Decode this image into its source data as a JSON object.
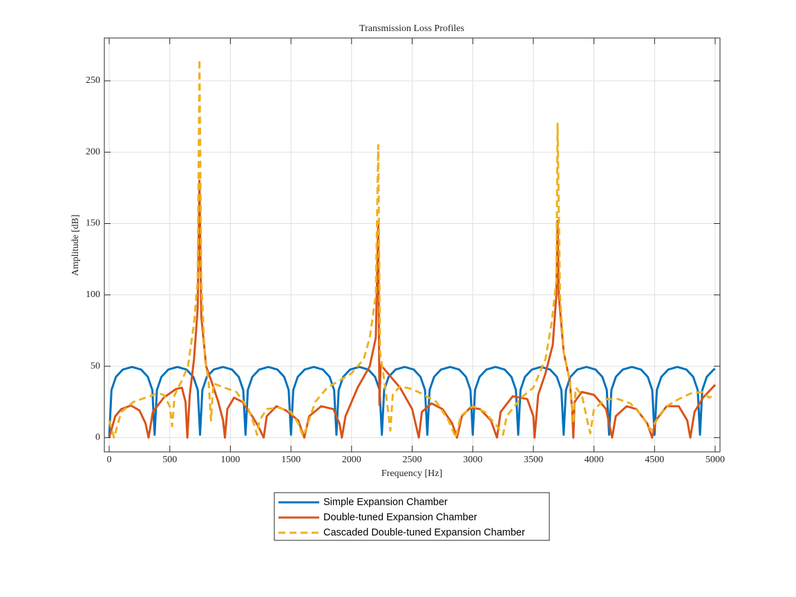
{
  "chart_data": {
    "type": "line",
    "title": "Transmission Loss Profiles",
    "xlabel": "Frequency [Hz]",
    "ylabel": "Amplitude [dB]",
    "xlim": [
      -40,
      5040
    ],
    "ylim": [
      -10,
      280
    ],
    "xticks": [
      0,
      500,
      1000,
      1500,
      2000,
      2500,
      3000,
      3500,
      4000,
      4500,
      5000
    ],
    "yticks": [
      0,
      50,
      100,
      150,
      200,
      250
    ],
    "grid": true,
    "legend": "bottom outside",
    "series": [
      {
        "name": "Simple Expansion Chamber",
        "color": "#0072BD",
        "line_style": "solid",
        "x": [
          0,
          19,
          56,
          113,
          188,
          263,
          319,
          356,
          375,
          394,
          431,
          488,
          563,
          638,
          694,
          731,
          750,
          769,
          806,
          863,
          938,
          1013,
          1069,
          1106,
          1125,
          1144,
          1181,
          1238,
          1313,
          1388,
          1444,
          1481,
          1500,
          1519,
          1556,
          1613,
          1688,
          1763,
          1819,
          1856,
          1875,
          1894,
          1931,
          1988,
          2063,
          2138,
          2194,
          2231,
          2250,
          2269,
          2306,
          2363,
          2438,
          2513,
          2569,
          2606,
          2625,
          2644,
          2681,
          2738,
          2813,
          2888,
          2944,
          2981,
          3000,
          3019,
          3056,
          3113,
          3188,
          3263,
          3319,
          3356,
          3375,
          3394,
          3431,
          3488,
          3563,
          3638,
          3694,
          3731,
          3750,
          3769,
          3806,
          3863,
          3938,
          4013,
          4069,
          4106,
          4125,
          4144,
          4181,
          4238,
          4313,
          4388,
          4444,
          4481,
          4500,
          4519,
          4556,
          4613,
          4688,
          4763,
          4819,
          4856,
          4875,
          4894,
          4931,
          4988,
          5000
        ],
        "values": [
          0,
          33.4,
          42.6,
          47.7,
          49.5,
          47.7,
          42.6,
          33.4,
          2,
          33.4,
          42.6,
          47.7,
          49.5,
          47.7,
          42.6,
          33.4,
          2,
          33.4,
          42.6,
          47.7,
          49.5,
          47.7,
          42.6,
          33.4,
          2,
          33.4,
          42.6,
          47.7,
          49.5,
          47.7,
          42.6,
          33.4,
          2,
          33.4,
          42.6,
          47.7,
          49.5,
          47.7,
          42.6,
          33.4,
          2,
          33.4,
          42.6,
          47.7,
          49.5,
          47.7,
          42.6,
          33.4,
          2,
          33.4,
          42.6,
          47.7,
          49.5,
          47.7,
          42.6,
          33.4,
          2,
          33.4,
          42.6,
          47.7,
          49.5,
          47.7,
          42.6,
          33.4,
          2,
          33.4,
          42.6,
          47.7,
          49.5,
          47.7,
          42.6,
          33.4,
          2,
          33.4,
          42.6,
          47.7,
          49.5,
          47.7,
          42.6,
          33.4,
          2,
          33.4,
          42.6,
          47.7,
          49.5,
          47.7,
          42.6,
          33.4,
          2,
          33.4,
          42.6,
          47.7,
          49.5,
          47.7,
          42.6,
          33.4,
          2,
          33.4,
          42.6,
          47.7,
          49.5,
          47.7,
          42.6,
          33.4,
          2,
          33.4,
          42.6,
          47.7,
          48.2
        ]
      },
      {
        "name": "Double-tuned Expansion Chamber",
        "color": "#D95319",
        "line_style": "solid",
        "x": [
          0,
          50,
          100,
          180,
          250,
          300,
          325,
          360,
          450,
          550,
          600,
          630,
          645,
          665,
          700,
          730,
          745,
          760,
          800,
          850,
          900,
          940,
          955,
          975,
          1030,
          1100,
          1180,
          1230,
          1275,
          1300,
          1380,
          1460,
          1560,
          1610,
          1650,
          1750,
          1850,
          1900,
          1920,
          1950,
          2050,
          2150,
          2200,
          2220,
          2230,
          2240,
          2300,
          2400,
          2500,
          2555,
          2580,
          2660,
          2750,
          2830,
          2870,
          2910,
          2980,
          3060,
          3150,
          3200,
          3230,
          3330,
          3450,
          3500,
          3510,
          3540,
          3600,
          3660,
          3690,
          3700,
          3710,
          3750,
          3800,
          3820,
          3830,
          3840,
          3900,
          4000,
          4100,
          4150,
          4180,
          4270,
          4350,
          4440,
          4480,
          4510,
          4600,
          4700,
          4770,
          4795,
          4830,
          4900,
          5000
        ],
        "values": [
          0,
          15,
          20,
          22.5,
          19,
          10,
          0,
          18,
          28,
          34,
          35,
          25,
          0,
          30,
          55,
          90,
          180,
          85,
          50,
          38,
          25,
          12,
          0,
          20,
          28,
          25,
          15,
          8,
          0,
          15,
          22,
          19,
          12,
          0,
          15,
          22,
          20,
          10,
          0,
          15,
          35,
          50,
          70,
          150,
          23,
          51,
          45,
          35,
          20,
          0,
          18,
          24,
          20,
          10,
          0,
          15,
          21,
          20,
          12,
          0,
          18,
          29,
          27,
          15,
          0,
          30,
          45,
          65,
          100,
          152,
          100,
          60,
          40,
          20,
          0,
          25,
          32,
          30,
          20,
          0,
          15,
          22,
          20,
          10,
          0,
          12,
          22,
          22,
          12,
          0,
          18,
          28,
          37
        ]
      },
      {
        "name": "Cascaded Double-tuned Expansion Chamber",
        "color": "#EDB120",
        "line_style": "dashed",
        "x": [
          0,
          40,
          100,
          200,
          300,
          400,
          450,
          500,
          520,
          540,
          600,
          650,
          700,
          730,
          745,
          760,
          790,
          820,
          840,
          860,
          950,
          1050,
          1150,
          1200,
          1220,
          1240,
          1300,
          1400,
          1500,
          1560,
          1600,
          1620,
          1700,
          1800,
          1900,
          2000,
          2100,
          2150,
          2200,
          2220,
          2235,
          2270,
          2300,
          2320,
          2340,
          2400,
          2500,
          2600,
          2700,
          2800,
          2860,
          2900,
          3000,
          3100,
          3200,
          3250,
          3280,
          3400,
          3500,
          3600,
          3650,
          3690,
          3700,
          3720,
          3750,
          3800,
          3830,
          3850,
          3900,
          3950,
          3970,
          4000,
          4100,
          4200,
          4300,
          4400,
          4470,
          4500,
          4600,
          4700,
          4800,
          4900,
          4950,
          5000
        ],
        "values": [
          12,
          0,
          18,
          25,
          28,
          31,
          30,
          22,
          8,
          30,
          40,
          50,
          80,
          110,
          265,
          110,
          55,
          40,
          12,
          38,
          35,
          32,
          20,
          8,
          2,
          12,
          20,
          21,
          18,
          10,
          1,
          5,
          25,
          35,
          40,
          45,
          55,
          70,
          100,
          205,
          60,
          40,
          20,
          5,
          30,
          36,
          34,
          30,
          25,
          12,
          0,
          15,
          22,
          18,
          8,
          2,
          15,
          28,
          35,
          55,
          80,
          110,
          220,
          100,
          60,
          40,
          10,
          35,
          30,
          10,
          3,
          20,
          27,
          27,
          24,
          15,
          5,
          10,
          22,
          27,
          31,
          32,
          28,
          30
        ]
      }
    ]
  }
}
